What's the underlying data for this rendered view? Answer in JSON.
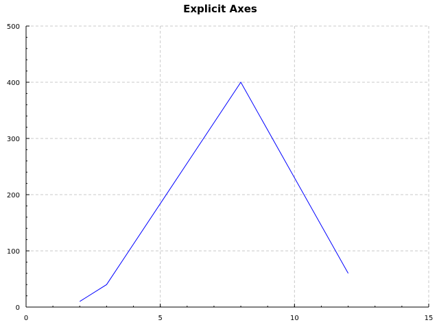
{
  "chart_data": {
    "type": "line",
    "title": "Explicit Axes",
    "xlabel": "",
    "ylabel": "",
    "xlim": [
      0,
      15
    ],
    "ylim": [
      0,
      500
    ],
    "x_ticks": [
      0,
      5,
      10,
      15
    ],
    "y_ticks": [
      0,
      100,
      200,
      300,
      400,
      500
    ],
    "x_minor_step": 1,
    "y_minor_step": 20,
    "grid": true,
    "series": [
      {
        "color": "#0000ff",
        "points": [
          {
            "x": 2,
            "y": 10
          },
          {
            "x": 3,
            "y": 40
          },
          {
            "x": 8,
            "y": 400
          },
          {
            "x": 12,
            "y": 60
          }
        ]
      }
    ]
  }
}
